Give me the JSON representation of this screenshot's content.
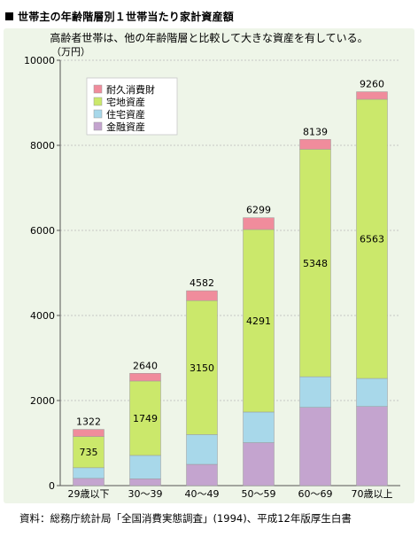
{
  "header": {
    "title": "世帯主の年齢階層別１世帯当たり家計資産額",
    "subtitle": "高齢者世帯は、他の年齢階層と比較して大きな資産を有している。",
    "source": "資料：総務庁統計局「全国消費実態調査」(1994)、平成12年版厚生白書"
  },
  "chart_data": {
    "type": "bar",
    "stacked": true,
    "title": "世帯主の年齢階層別１世帯当たり家計資産額",
    "subtitle": "高齢者世帯は、他の年齢階層と比較して大きな資産を有している。",
    "ylabel": "（万円）",
    "xlabel": "",
    "ylim": [
      0,
      10000
    ],
    "yticks": [
      0,
      2000,
      4000,
      6000,
      8000,
      10000
    ],
    "grid": true,
    "legend_position": "top-left",
    "categories": [
      "29歳以下",
      "30～39",
      "40～49",
      "50～59",
      "60～69",
      "70歳以上"
    ],
    "totals": [
      1322,
      2640,
      4582,
      6299,
      8139,
      9260
    ],
    "series": [
      {
        "name": "金融資産",
        "color": "#c4a4cf",
        "values": [
          170,
          160,
          500,
          1010,
          1840,
          1860
        ]
      },
      {
        "name": "住宅資産",
        "color": "#a8d8ea",
        "values": [
          250,
          550,
          700,
          720,
          720,
          660
        ]
      },
      {
        "name": "宅地資産",
        "color": "#cbe86b",
        "values": [
          735,
          1749,
          3150,
          4291,
          5348,
          6563
        ]
      },
      {
        "name": "耐久消費財",
        "color": "#f08c9c",
        "values": [
          167,
          181,
          232,
          278,
          231,
          177
        ]
      }
    ],
    "data_labels": [
      {
        "series": "宅地資産",
        "values": [
          735,
          1749,
          3150,
          4291,
          5348,
          6563
        ]
      }
    ]
  }
}
